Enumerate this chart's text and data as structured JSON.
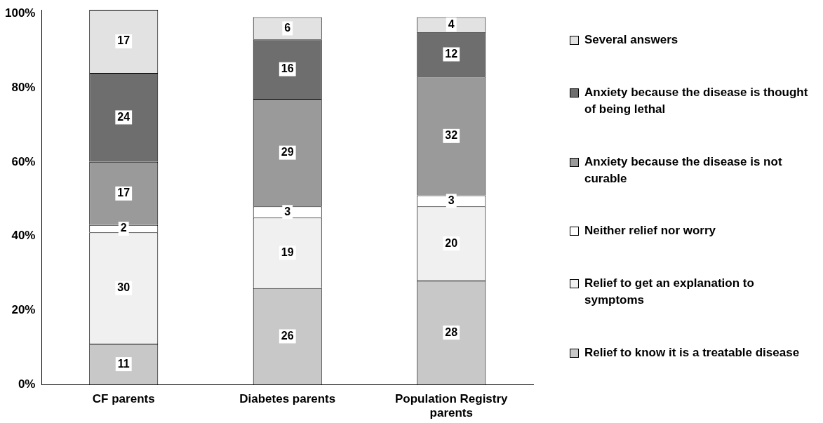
{
  "chart_data": {
    "type": "bar",
    "stacked": true,
    "categories": [
      "CF parents",
      "Diabetes parents",
      "Population Registry parents"
    ],
    "series": [
      {
        "name": "Relief to know it is a treatable disease",
        "color": "#c8c8c8",
        "values": [
          11,
          26,
          28
        ]
      },
      {
        "name": "Relief to get an explanation to symptoms",
        "color": "#f0f0f0",
        "values": [
          30,
          19,
          20
        ]
      },
      {
        "name": "Neither relief nor worry",
        "color": "#ffffff",
        "values": [
          2,
          3,
          3
        ]
      },
      {
        "name": "Anxiety because the disease is not curable",
        "color": "#9a9a9a",
        "values": [
          17,
          29,
          32
        ]
      },
      {
        "name": "Anxiety because the disease is thought of being lethal",
        "color": "#6e6e6e",
        "values": [
          24,
          16,
          12
        ]
      },
      {
        "name": "Several answers",
        "color": "#e2e2e2",
        "values": [
          17,
          6,
          4
        ]
      }
    ],
    "ylim": [
      0,
      101
    ],
    "yticks": [
      {
        "value": 0,
        "label": "0%"
      },
      {
        "value": 20,
        "label": "20%"
      },
      {
        "value": 40,
        "label": "40%"
      },
      {
        "value": 60,
        "label": "60%"
      },
      {
        "value": 80,
        "label": "80%"
      },
      {
        "value": 100,
        "label": "100%"
      }
    ],
    "grid": false,
    "legend": "right",
    "data_labels": true
  }
}
